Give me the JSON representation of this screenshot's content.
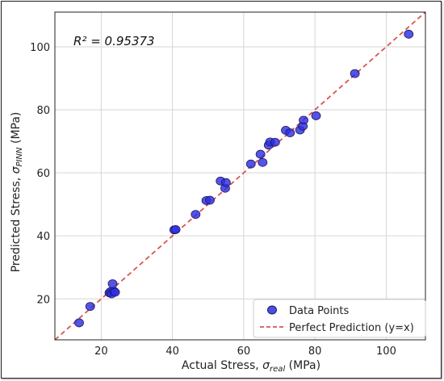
{
  "chart_data": {
    "type": "scatter",
    "xlabel_prefix": "Actual Stress, ",
    "xlabel_sym": "σ",
    "xlabel_sub": "real",
    "xlabel_unit": " (MPa)",
    "ylabel_prefix": "Predicted Stress, ",
    "ylabel_sym": "σ",
    "ylabel_sub": "PINN",
    "ylabel_unit": " (MPa)",
    "annotation": "R² = 0.95373",
    "xlim": [
      7,
      111
    ],
    "ylim": [
      7,
      111
    ],
    "xticks": [
      20,
      40,
      60,
      80,
      100
    ],
    "yticks": [
      20,
      40,
      60,
      80,
      100
    ],
    "grid": true,
    "legend_position": "bottom-right",
    "colors": {
      "points": "#2e2ee0",
      "point_edge": "#1a1a66",
      "line": "#d9534f"
    },
    "series": [
      {
        "name": "Data Points",
        "x": [
          13.8,
          16.9,
          22.3,
          22.6,
          22.9,
          23.2,
          23.6,
          23.9,
          40.5,
          40.9,
          46.5,
          49.5,
          50.5,
          53.5,
          54.8,
          55.0,
          62.0,
          64.7,
          65.3,
          67.0,
          67.4,
          68.8,
          71.8,
          73.0,
          75.8,
          76.6,
          76.8,
          80.3,
          91.2,
          106.3
        ],
        "y": [
          12.4,
          17.6,
          21.9,
          22.3,
          21.6,
          24.8,
          22.4,
          22.1,
          41.9,
          42.0,
          46.8,
          51.2,
          51.3,
          57.4,
          55.1,
          56.9,
          62.8,
          65.9,
          63.3,
          68.8,
          69.8,
          69.7,
          73.5,
          72.7,
          73.6,
          74.8,
          76.7,
          78.1,
          91.5,
          104.0
        ]
      },
      {
        "name": "Perfect Prediction (y=x)",
        "x": [
          7,
          111
        ],
        "y": [
          7,
          111
        ]
      }
    ]
  }
}
